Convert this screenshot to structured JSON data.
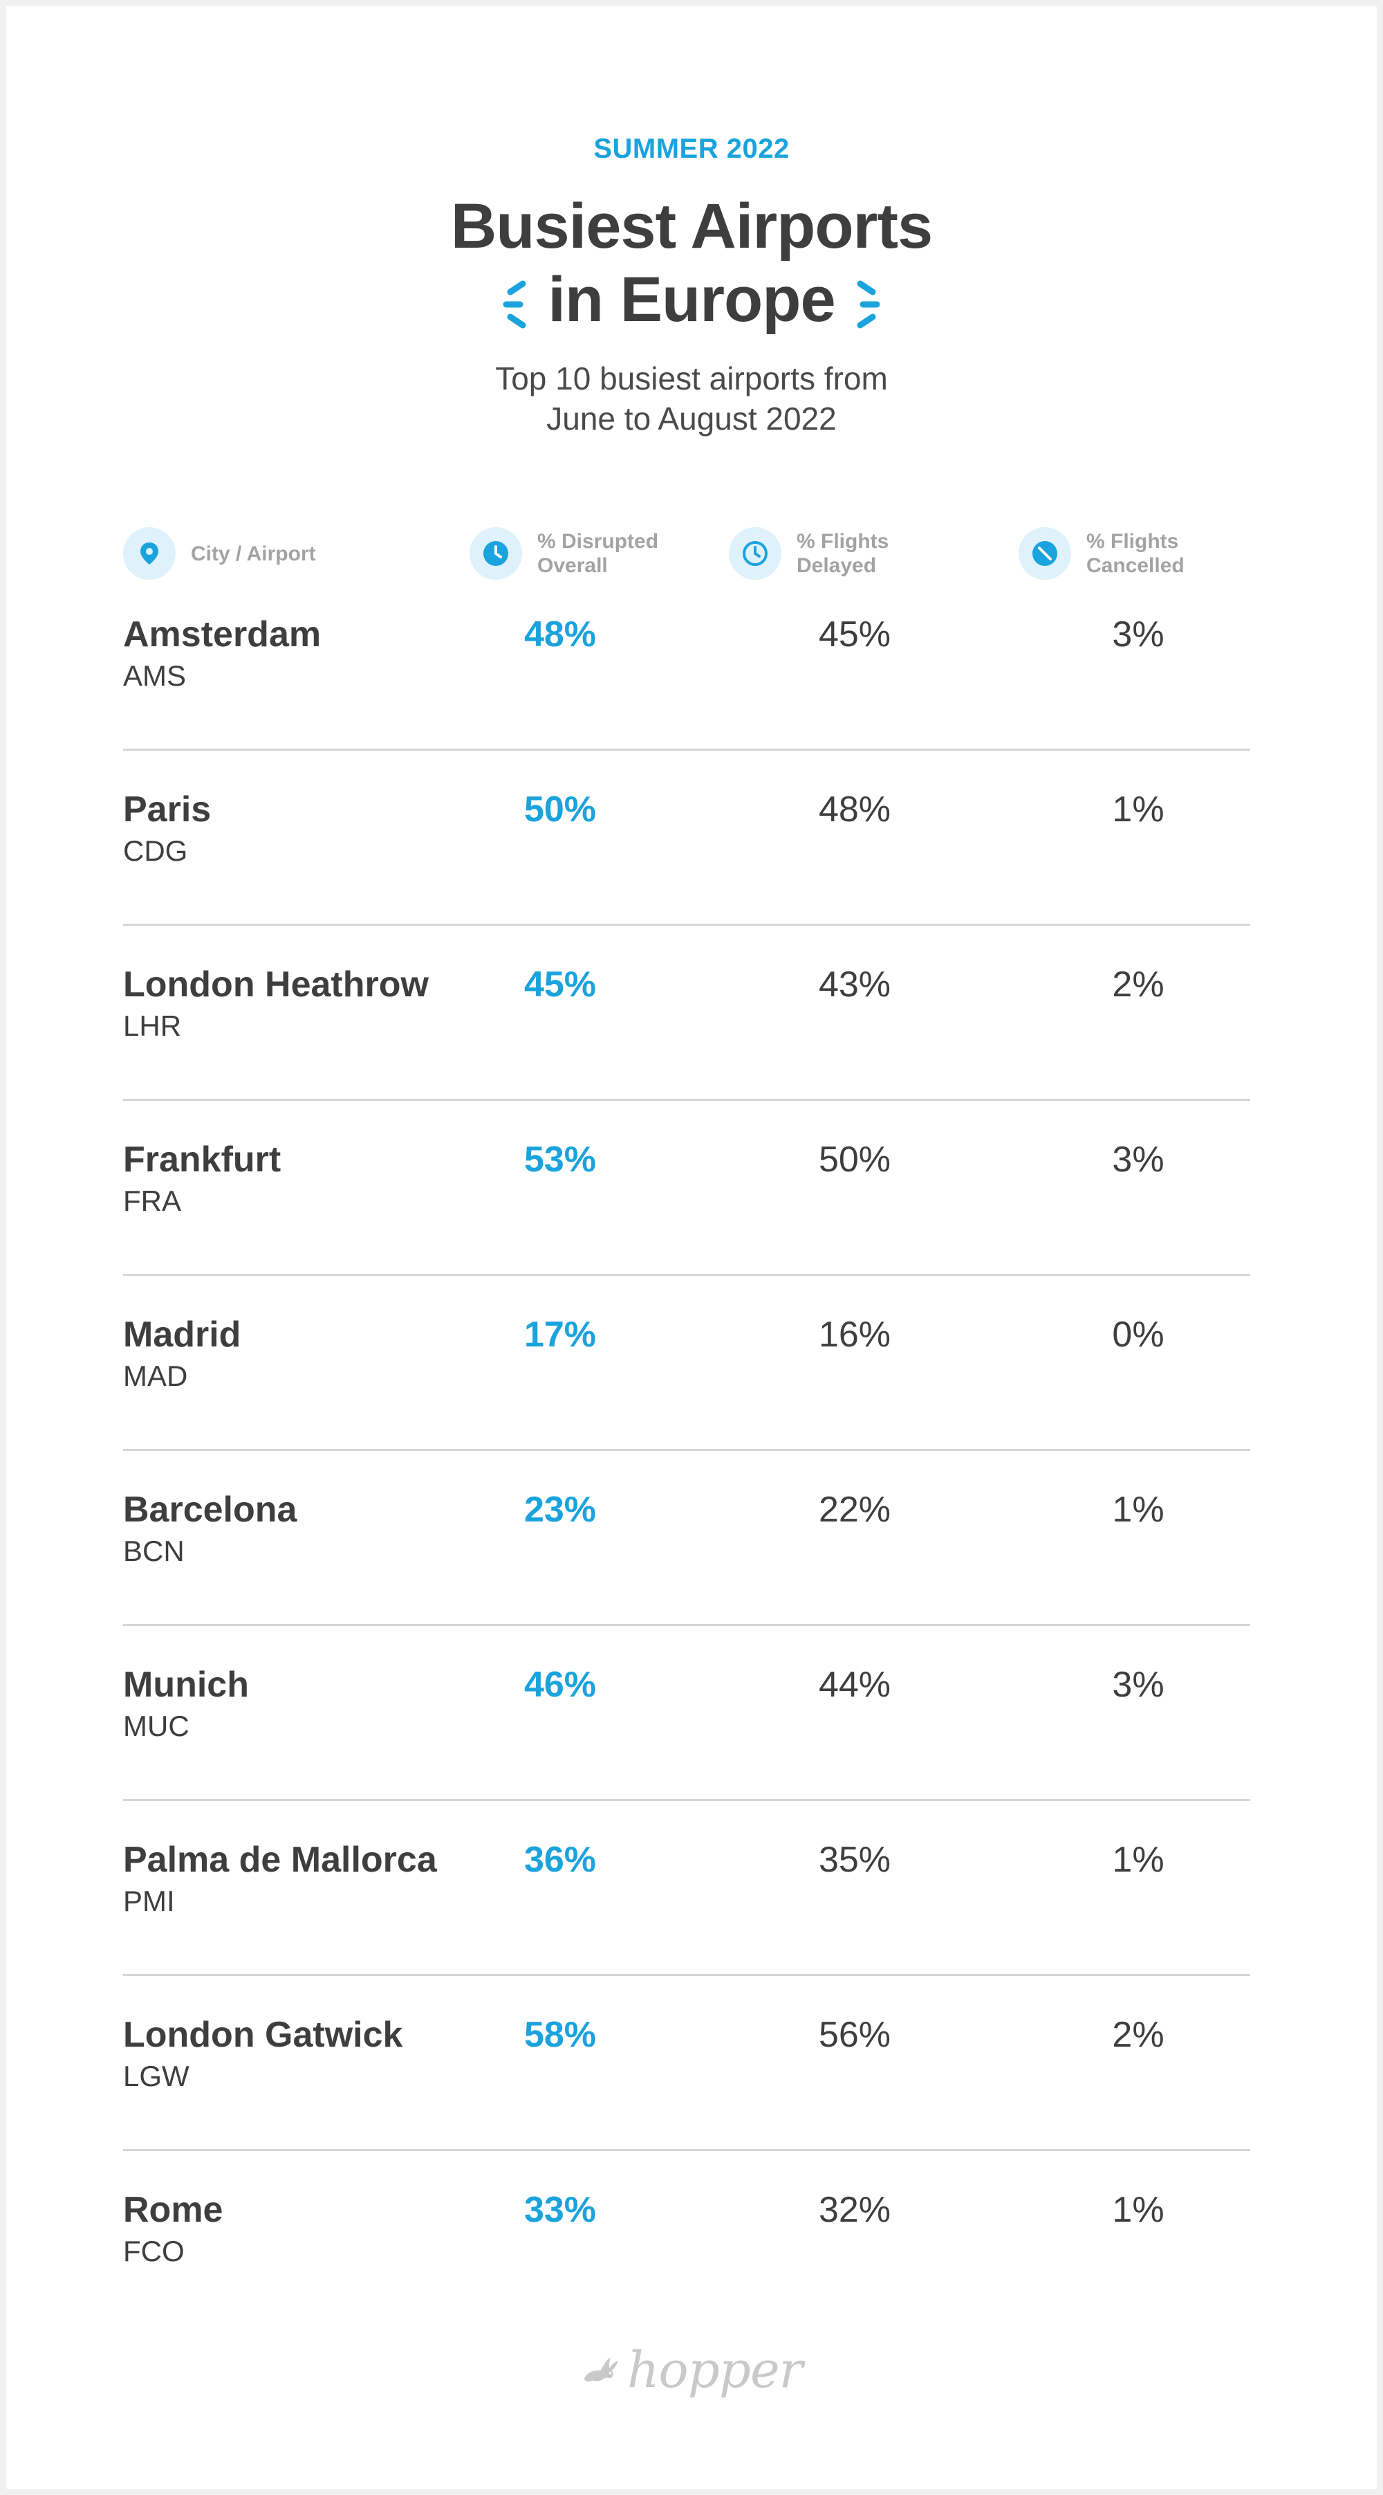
{
  "header": {
    "eyebrow": "SUMMER 2022",
    "title_line1": "Busiest Airports",
    "title_line2": "in Europe",
    "subtitle_line1": "Top 10 busiest airports from",
    "subtitle_line2": "June to August 2022"
  },
  "columns": [
    {
      "icon": "location-pin-icon",
      "label_line1": "City / Airport",
      "label_line2": ""
    },
    {
      "icon": "clock-filled-icon",
      "label_line1": "% Disrupted",
      "label_line2": "Overall"
    },
    {
      "icon": "clock-outline-icon",
      "label_line1": "% Flights",
      "label_line2": "Delayed"
    },
    {
      "icon": "cancel-icon",
      "label_line1": "% Flights",
      "label_line2": "Cancelled"
    }
  ],
  "rows": [
    {
      "city": "Amsterdam",
      "code": "AMS",
      "disrupted": "48%",
      "delayed": "45%",
      "cancelled": "3%"
    },
    {
      "city": "Paris",
      "code": "CDG",
      "disrupted": "50%",
      "delayed": "48%",
      "cancelled": "1%"
    },
    {
      "city": "London Heathrow",
      "code": "LHR",
      "disrupted": "45%",
      "delayed": "43%",
      "cancelled": "2%"
    },
    {
      "city": "Frankfurt",
      "code": "FRA",
      "disrupted": "53%",
      "delayed": "50%",
      "cancelled": "3%"
    },
    {
      "city": "Madrid",
      "code": "MAD",
      "disrupted": "17%",
      "delayed": "16%",
      "cancelled": "0%"
    },
    {
      "city": "Barcelona",
      "code": "BCN",
      "disrupted": "23%",
      "delayed": "22%",
      "cancelled": "1%"
    },
    {
      "city": "Munich",
      "code": "MUC",
      "disrupted": "46%",
      "delayed": "44%",
      "cancelled": "3%"
    },
    {
      "city": "Palma de Mallorca",
      "code": "PMI",
      "disrupted": "36%",
      "delayed": "35%",
      "cancelled": "1%"
    },
    {
      "city": "London Gatwick",
      "code": "LGW",
      "disrupted": "58%",
      "delayed": "56%",
      "cancelled": "2%"
    },
    {
      "city": "Rome",
      "code": "FCO",
      "disrupted": "33%",
      "delayed": "32%",
      "cancelled": "1%"
    }
  ],
  "footer": {
    "brand": "hopper",
    "logo_icon": "bunny-logo-icon"
  },
  "colors": {
    "accent": "#1aa3dc",
    "text": "#3e3e3e",
    "muted": "#a3a3a3",
    "icon_bg": "#dff1fb",
    "divider": "#d6d6d6"
  }
}
